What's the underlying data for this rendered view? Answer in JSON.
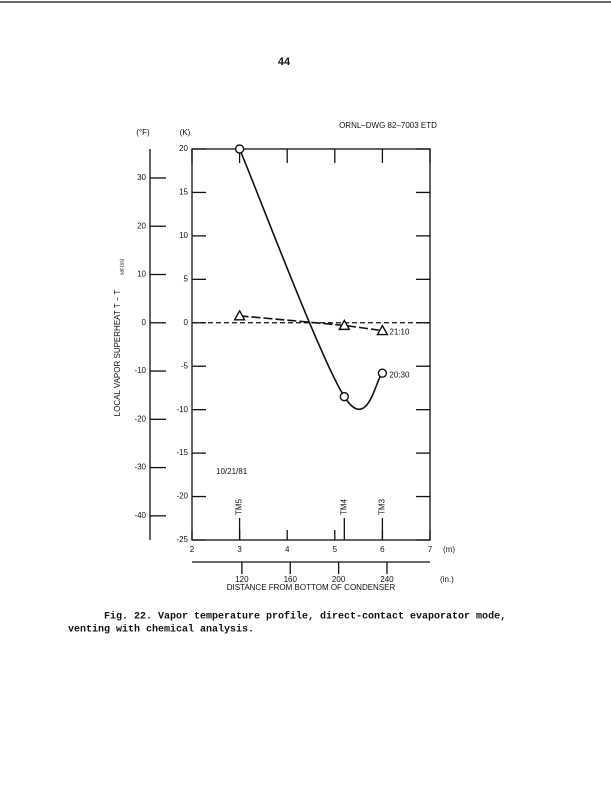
{
  "page_number": "44",
  "drawing_id": "ORNL–DWG 82–7003 ETD",
  "chart_data": {
    "type": "line",
    "y_label": "LOCAL VAPOR SUPERHEAT T − T",
    "y_label_sub": "sat (ss)",
    "x_label": "DISTANCE FROM BOTTOM OF CONDENSER",
    "y_unit": "(K)",
    "y2_unit": "(°F)",
    "x_unit": "(m)",
    "x2_unit": "(in.)",
    "date": "10/21/81",
    "xlim": [
      2,
      7
    ],
    "xticks": [
      2,
      3,
      4,
      5,
      6,
      7
    ],
    "ylim": [
      -25,
      20
    ],
    "yticks": [
      20,
      15,
      10,
      5,
      0,
      -5,
      -10,
      -15,
      -20,
      -25
    ],
    "y2lim": [
      -45,
      36
    ],
    "y2ticks": [
      30,
      20,
      10,
      0,
      -10,
      -20,
      -30,
      -40
    ],
    "x2lim": [
      78.74,
      275.59
    ],
    "x2ticks": [
      120,
      160,
      200,
      240
    ],
    "probes": [
      {
        "label": "TM5",
        "x": 3
      },
      {
        "label": "TM4",
        "x": 5.2
      },
      {
        "label": "TM3",
        "x": 6
      }
    ],
    "series": [
      {
        "name": "20:30",
        "marker": "circle",
        "dashed": false,
        "color": "#111111",
        "x": [
          3,
          5.2,
          6
        ],
        "values": [
          20,
          -8.5,
          -5.8
        ]
      },
      {
        "name": "21:10",
        "marker": "triangle",
        "dashed": true,
        "color": "#111111",
        "x": [
          3,
          5.2,
          6
        ],
        "values": [
          0.8,
          -0.3,
          -0.9
        ]
      }
    ]
  },
  "caption": [
    "Fig. 22.  Vapor temperature profile, direct-contact evaporator mode,",
    "venting with chemical analysis."
  ]
}
